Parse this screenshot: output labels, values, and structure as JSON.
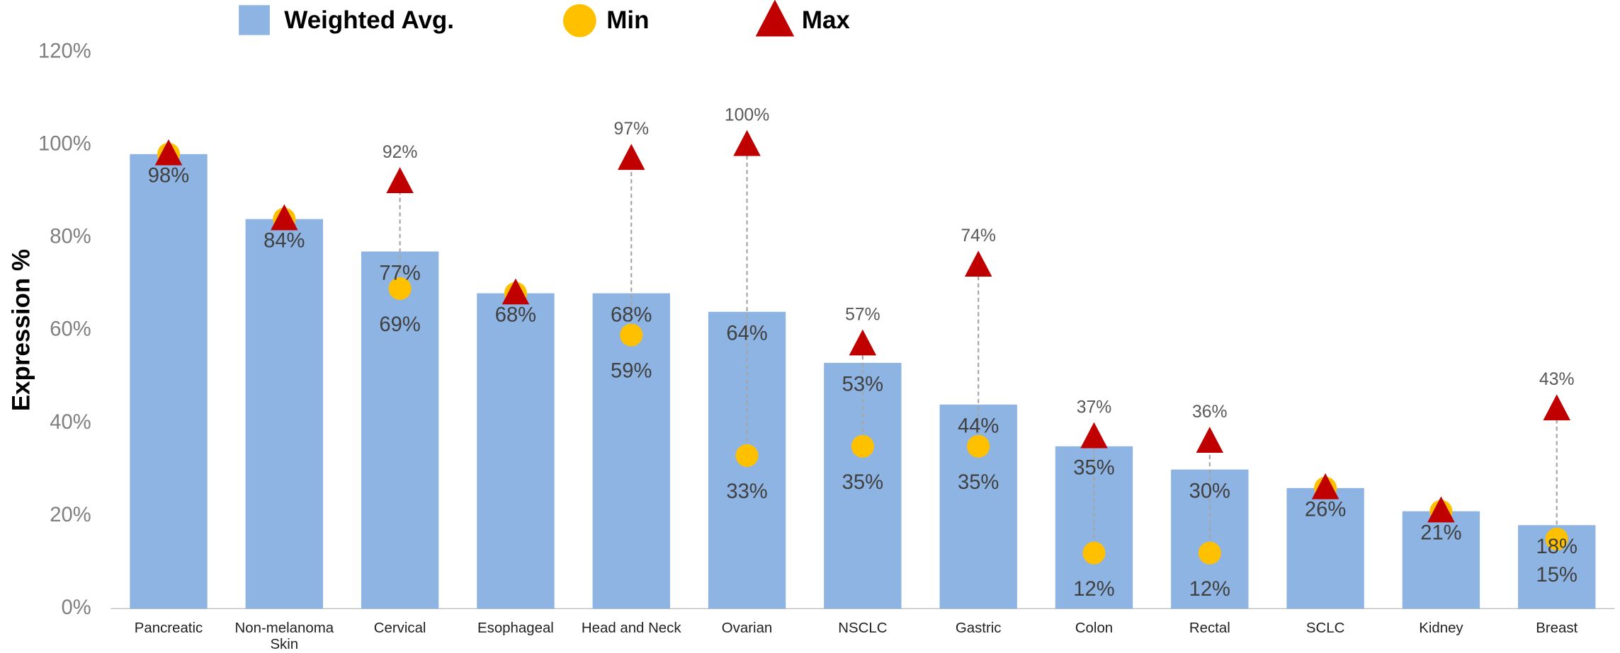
{
  "chart_data": {
    "type": "bar",
    "y_axis_label": "Expression %",
    "categories": [
      "Pancreatic",
      "Non-melanoma Skin",
      "Cervical",
      "Esophageal",
      "Head and Neck",
      "Ovarian",
      "NSCLC",
      "Gastric",
      "Colon",
      "Rectal",
      "SCLC",
      "Kidney",
      "Breast"
    ],
    "series": [
      {
        "name": "Weighted Avg.",
        "color": "#8EB4E3",
        "values": [
          98,
          84,
          77,
          68,
          68,
          64,
          53,
          44,
          35,
          30,
          26,
          21,
          18
        ],
        "value_labels": [
          "98%",
          "84%",
          "77%",
          "68%",
          "68%",
          "64%",
          "53%",
          "44%",
          "35%",
          "30%",
          "26%",
          "21%",
          "18%"
        ]
      },
      {
        "name": "Min",
        "color": "#FFC000",
        "values": [
          98,
          84,
          69,
          68,
          59,
          33,
          35,
          35,
          12,
          12,
          26,
          21,
          15
        ],
        "value_labels": [
          null,
          null,
          "69%",
          null,
          "59%",
          "33%",
          "35%",
          "35%",
          "12%",
          "12%",
          null,
          null,
          "15%"
        ]
      },
      {
        "name": "Max",
        "color": "#C00000",
        "values": [
          98,
          84,
          92,
          68,
          97,
          100,
          57,
          74,
          37,
          36,
          26,
          21,
          43
        ],
        "value_labels": [
          null,
          null,
          "92%",
          null,
          "97%",
          "100%",
          "57%",
          "74%",
          "37%",
          "36%",
          null,
          null,
          "43%"
        ]
      }
    ],
    "ylim": [
      0,
      120
    ],
    "yticks": [
      {
        "value": 0,
        "label": "0%"
      },
      {
        "value": 20,
        "label": "20%"
      },
      {
        "value": 40,
        "label": "40%"
      },
      {
        "value": 60,
        "label": "60%"
      },
      {
        "value": 80,
        "label": "80%"
      },
      {
        "value": 100,
        "label": "100%"
      },
      {
        "value": 120,
        "label": "120%"
      }
    ]
  }
}
